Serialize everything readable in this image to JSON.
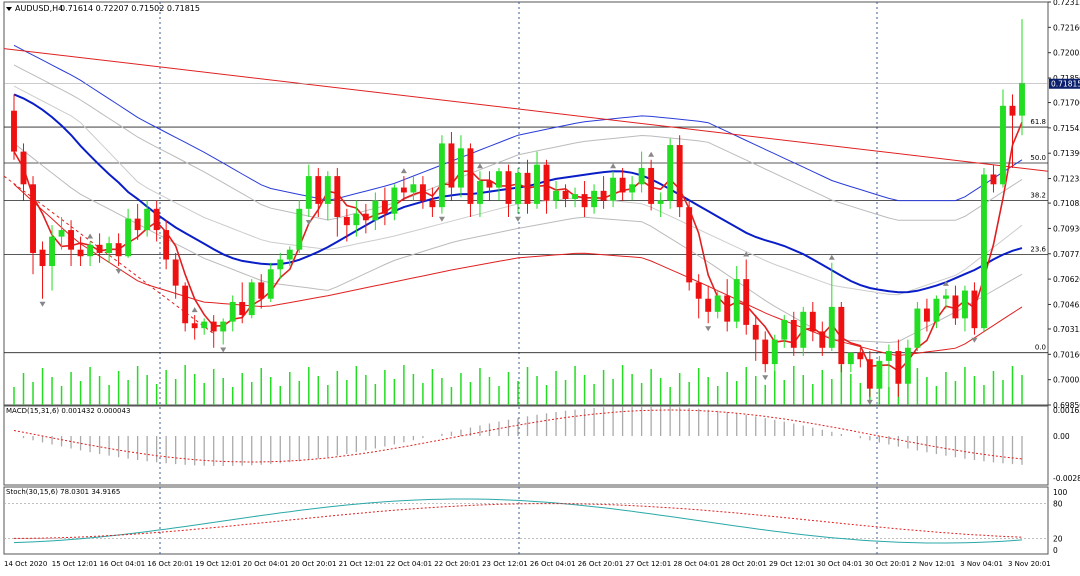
{
  "window": {
    "title": "AUDUSD,H4",
    "ohlc": "0.71614 0.72207 0.71502 0.71815"
  },
  "macd_panel": {
    "label": "MACD(15,31,6) 0.001432 0.000043",
    "ticks": [
      "0.001637",
      "0.00",
      "-0.002871"
    ]
  },
  "stoch_panel": {
    "label": "Stoch(30,15,6) 78.0301 34.9165",
    "ticks": [
      "100",
      "80",
      "20",
      "0"
    ]
  },
  "fib_labels": [
    "61.8",
    "50.0",
    "38.2",
    "23.6",
    "0.0"
  ],
  "colors": {
    "bull": "#22dd22",
    "bear": "#ee1111",
    "blue_ma": "#0a1ec8",
    "red_ma": "#e02020",
    "envelope": "#2a3cd8",
    "signal": "#e02020",
    "stoch_main": "#2aa8a8",
    "grid": "#3a5a9a"
  },
  "chart_data": {
    "type": "candlestick",
    "symbol": "AUDUSD,H4",
    "y_ticks": [
      "0.72315",
      "0.72160",
      "0.72005",
      "0.71850",
      "0.71700",
      "0.71545",
      "0.71390",
      "0.71235",
      "0.71085",
      "0.70930",
      "0.70775",
      "0.70620",
      "0.70465",
      "0.70315",
      "0.70160",
      "0.70005",
      "0.69850"
    ],
    "current_price": "0.71815",
    "ylim": [
      0.6985,
      0.72315
    ],
    "x_ticks": [
      "14 Oct 2020",
      "15 Oct 12:01",
      "16 Oct 04:01",
      "16 Oct 20:01",
      "19 Oct 12:01",
      "20 Oct 04:01",
      "20 Oct 20:01",
      "21 Oct 12:01",
      "22 Oct 04:01",
      "22 Oct 20:01",
      "23 Oct 12:01",
      "26 Oct 04:01",
      "26 Oct 20:01",
      "27 Oct 12:01",
      "28 Oct 04:01",
      "28 Oct 20:01",
      "29 Oct 12:01",
      "30 Oct 04:01",
      "30 Oct 20:01",
      "2 Nov 12:01",
      "3 Nov 04:01",
      "3 Nov 20:01"
    ],
    "fib_levels": [
      {
        "label": "61.8",
        "price": 0.7155
      },
      {
        "label": "50.0",
        "price": 0.7133
      },
      {
        "label": "38.2",
        "price": 0.711
      },
      {
        "label": "23.6",
        "price": 0.7077
      },
      {
        "label": "0.0",
        "price": 0.7017
      }
    ],
    "candles": [
      {
        "o": 0.7165,
        "h": 0.7175,
        "c": 0.714,
        "l": 0.7135
      },
      {
        "o": 0.714,
        "h": 0.7145,
        "c": 0.712,
        "l": 0.711
      },
      {
        "o": 0.712,
        "h": 0.7125,
        "c": 0.7078,
        "l": 0.7065
      },
      {
        "o": 0.708,
        "h": 0.7085,
        "c": 0.707,
        "l": 0.705
      },
      {
        "o": 0.707,
        "h": 0.7095,
        "c": 0.7088,
        "l": 0.7055
      },
      {
        "o": 0.7088,
        "h": 0.71,
        "c": 0.7092,
        "l": 0.708
      },
      {
        "o": 0.7092,
        "h": 0.7098,
        "c": 0.708,
        "l": 0.707
      },
      {
        "o": 0.708,
        "h": 0.7088,
        "c": 0.7076,
        "l": 0.707
      },
      {
        "o": 0.7076,
        "h": 0.7085,
        "c": 0.7083,
        "l": 0.707
      },
      {
        "o": 0.7083,
        "h": 0.709,
        "c": 0.7078,
        "l": 0.7072
      },
      {
        "o": 0.7078,
        "h": 0.7088,
        "c": 0.7084,
        "l": 0.7072
      },
      {
        "o": 0.7084,
        "h": 0.709,
        "c": 0.7076,
        "l": 0.707
      },
      {
        "o": 0.7076,
        "h": 0.7105,
        "c": 0.7099,
        "l": 0.7075
      },
      {
        "o": 0.7099,
        "h": 0.7108,
        "c": 0.7092,
        "l": 0.7086
      },
      {
        "o": 0.7092,
        "h": 0.711,
        "c": 0.7105,
        "l": 0.7088
      },
      {
        "o": 0.7105,
        "h": 0.711,
        "c": 0.7092,
        "l": 0.7085
      },
      {
        "o": 0.7092,
        "h": 0.7098,
        "c": 0.7074,
        "l": 0.7068
      },
      {
        "o": 0.7074,
        "h": 0.7078,
        "c": 0.7058,
        "l": 0.705
      },
      {
        "o": 0.7058,
        "h": 0.706,
        "c": 0.7035,
        "l": 0.703
      },
      {
        "o": 0.7035,
        "h": 0.704,
        "c": 0.7032,
        "l": 0.7025
      },
      {
        "o": 0.7032,
        "h": 0.7038,
        "c": 0.7036,
        "l": 0.7028
      },
      {
        "o": 0.7036,
        "h": 0.704,
        "c": 0.703,
        "l": 0.702
      },
      {
        "o": 0.703,
        "h": 0.7038,
        "c": 0.7036,
        "l": 0.7022
      },
      {
        "o": 0.7036,
        "h": 0.7052,
        "c": 0.7048,
        "l": 0.703
      },
      {
        "o": 0.7048,
        "h": 0.706,
        "c": 0.704,
        "l": 0.7035
      },
      {
        "o": 0.704,
        "h": 0.7062,
        "c": 0.706,
        "l": 0.7038
      },
      {
        "o": 0.706,
        "h": 0.7065,
        "c": 0.705,
        "l": 0.7044
      },
      {
        "o": 0.705,
        "h": 0.7072,
        "c": 0.7068,
        "l": 0.7048
      },
      {
        "o": 0.7068,
        "h": 0.7078,
        "c": 0.7074,
        "l": 0.7062
      },
      {
        "o": 0.7074,
        "h": 0.7082,
        "c": 0.708,
        "l": 0.707
      },
      {
        "o": 0.708,
        "h": 0.711,
        "c": 0.7105,
        "l": 0.7078
      },
      {
        "o": 0.7105,
        "h": 0.7132,
        "c": 0.7125,
        "l": 0.71
      },
      {
        "o": 0.7125,
        "h": 0.713,
        "c": 0.7108,
        "l": 0.71
      },
      {
        "o": 0.7108,
        "h": 0.7128,
        "c": 0.7125,
        "l": 0.7098
      },
      {
        "o": 0.7125,
        "h": 0.713,
        "c": 0.71,
        "l": 0.7088
      },
      {
        "o": 0.71,
        "h": 0.7105,
        "c": 0.7095,
        "l": 0.7085
      },
      {
        "o": 0.7095,
        "h": 0.711,
        "c": 0.7102,
        "l": 0.7088
      },
      {
        "o": 0.7102,
        "h": 0.7108,
        "c": 0.7098,
        "l": 0.709
      },
      {
        "o": 0.7098,
        "h": 0.7115,
        "c": 0.711,
        "l": 0.7092
      },
      {
        "o": 0.711,
        "h": 0.7118,
        "c": 0.7102,
        "l": 0.7095
      },
      {
        "o": 0.7102,
        "h": 0.712,
        "c": 0.7118,
        "l": 0.7098
      },
      {
        "o": 0.7118,
        "h": 0.7125,
        "c": 0.7115,
        "l": 0.711
      },
      {
        "o": 0.7115,
        "h": 0.7125,
        "c": 0.712,
        "l": 0.711
      },
      {
        "o": 0.712,
        "h": 0.7125,
        "c": 0.711,
        "l": 0.7105
      },
      {
        "o": 0.711,
        "h": 0.7118,
        "c": 0.7106,
        "l": 0.71
      },
      {
        "o": 0.7106,
        "h": 0.715,
        "c": 0.7145,
        "l": 0.7102
      },
      {
        "o": 0.7145,
        "h": 0.7152,
        "c": 0.7118,
        "l": 0.711
      },
      {
        "o": 0.7118,
        "h": 0.715,
        "c": 0.7142,
        "l": 0.7112
      },
      {
        "o": 0.7142,
        "h": 0.7145,
        "c": 0.7108,
        "l": 0.71
      },
      {
        "o": 0.7108,
        "h": 0.7128,
        "c": 0.7122,
        "l": 0.71
      },
      {
        "o": 0.7122,
        "h": 0.7128,
        "c": 0.7118,
        "l": 0.711
      },
      {
        "o": 0.7118,
        "h": 0.713,
        "c": 0.7128,
        "l": 0.711
      },
      {
        "o": 0.7128,
        "h": 0.7132,
        "c": 0.7108,
        "l": 0.71
      },
      {
        "o": 0.7108,
        "h": 0.713,
        "c": 0.7127,
        "l": 0.7102
      },
      {
        "o": 0.7127,
        "h": 0.7135,
        "c": 0.7108,
        "l": 0.7102
      },
      {
        "o": 0.7108,
        "h": 0.714,
        "c": 0.7132,
        "l": 0.7105
      },
      {
        "o": 0.7132,
        "h": 0.7135,
        "c": 0.711,
        "l": 0.7102
      },
      {
        "o": 0.711,
        "h": 0.7122,
        "c": 0.7116,
        "l": 0.7105
      },
      {
        "o": 0.7116,
        "h": 0.712,
        "c": 0.7111,
        "l": 0.7106
      },
      {
        "o": 0.7111,
        "h": 0.7118,
        "c": 0.7114,
        "l": 0.7106
      },
      {
        "o": 0.7114,
        "h": 0.7122,
        "c": 0.7106,
        "l": 0.71
      },
      {
        "o": 0.7106,
        "h": 0.712,
        "c": 0.7116,
        "l": 0.7102
      },
      {
        "o": 0.7116,
        "h": 0.7125,
        "c": 0.711,
        "l": 0.7105
      },
      {
        "o": 0.711,
        "h": 0.7128,
        "c": 0.7124,
        "l": 0.7106
      },
      {
        "o": 0.7124,
        "h": 0.713,
        "c": 0.7115,
        "l": 0.711
      },
      {
        "o": 0.7115,
        "h": 0.7125,
        "c": 0.712,
        "l": 0.711
      },
      {
        "o": 0.712,
        "h": 0.714,
        "c": 0.713,
        "l": 0.7115
      },
      {
        "o": 0.713,
        "h": 0.7135,
        "c": 0.7108,
        "l": 0.7104
      },
      {
        "o": 0.7108,
        "h": 0.7115,
        "c": 0.711,
        "l": 0.71
      },
      {
        "o": 0.711,
        "h": 0.7148,
        "c": 0.7144,
        "l": 0.7105
      },
      {
        "o": 0.7144,
        "h": 0.715,
        "c": 0.7106,
        "l": 0.71
      },
      {
        "o": 0.7106,
        "h": 0.711,
        "c": 0.706,
        "l": 0.7055
      },
      {
        "o": 0.706,
        "h": 0.7065,
        "c": 0.705,
        "l": 0.7038
      },
      {
        "o": 0.705,
        "h": 0.7058,
        "c": 0.7042,
        "l": 0.7035
      },
      {
        "o": 0.7042,
        "h": 0.7055,
        "c": 0.7052,
        "l": 0.7038
      },
      {
        "o": 0.7052,
        "h": 0.7062,
        "c": 0.7036,
        "l": 0.703
      },
      {
        "o": 0.7036,
        "h": 0.707,
        "c": 0.7062,
        "l": 0.7032
      },
      {
        "o": 0.7062,
        "h": 0.7074,
        "c": 0.7034,
        "l": 0.7028
      },
      {
        "o": 0.7034,
        "h": 0.704,
        "c": 0.7025,
        "l": 0.7012
      },
      {
        "o": 0.7025,
        "h": 0.703,
        "c": 0.701,
        "l": 0.7005
      },
      {
        "o": 0.701,
        "h": 0.7028,
        "c": 0.7025,
        "l": 0.7005
      },
      {
        "o": 0.7025,
        "h": 0.704,
        "c": 0.7037,
        "l": 0.702
      },
      {
        "o": 0.7037,
        "h": 0.7042,
        "c": 0.702,
        "l": 0.7015
      },
      {
        "o": 0.702,
        "h": 0.7045,
        "c": 0.7042,
        "l": 0.7015
      },
      {
        "o": 0.7042,
        "h": 0.7048,
        "c": 0.703,
        "l": 0.7024
      },
      {
        "o": 0.703,
        "h": 0.7036,
        "c": 0.702,
        "l": 0.7015
      },
      {
        "o": 0.702,
        "h": 0.7072,
        "c": 0.7045,
        "l": 0.7018
      },
      {
        "o": 0.7045,
        "h": 0.7048,
        "c": 0.701,
        "l": 0.7005
      },
      {
        "o": 0.701,
        "h": 0.7015,
        "c": 0.7017,
        "l": 0.7005
      },
      {
        "o": 0.7017,
        "h": 0.702,
        "c": 0.7013,
        "l": 0.7008
      },
      {
        "o": 0.7013,
        "h": 0.7018,
        "c": 0.6995,
        "l": 0.699
      },
      {
        "o": 0.6995,
        "h": 0.7015,
        "c": 0.7012,
        "l": 0.6992
      },
      {
        "o": 0.7012,
        "h": 0.7022,
        "c": 0.7018,
        "l": 0.6995
      },
      {
        "o": 0.7018,
        "h": 0.7025,
        "c": 0.6998,
        "l": 0.699
      },
      {
        "o": 0.6998,
        "h": 0.7025,
        "c": 0.702,
        "l": 0.6992
      },
      {
        "o": 0.702,
        "h": 0.7048,
        "c": 0.7044,
        "l": 0.7018
      },
      {
        "o": 0.7044,
        "h": 0.705,
        "c": 0.7036,
        "l": 0.703
      },
      {
        "o": 0.7036,
        "h": 0.7052,
        "c": 0.705,
        "l": 0.7032
      },
      {
        "o": 0.705,
        "h": 0.7056,
        "c": 0.7052,
        "l": 0.7044
      },
      {
        "o": 0.7052,
        "h": 0.7058,
        "c": 0.7038,
        "l": 0.7034
      },
      {
        "o": 0.7038,
        "h": 0.7058,
        "c": 0.7055,
        "l": 0.703
      },
      {
        "o": 0.7055,
        "h": 0.706,
        "c": 0.7032,
        "l": 0.7028
      },
      {
        "o": 0.7032,
        "h": 0.713,
        "c": 0.7126,
        "l": 0.703
      },
      {
        "o": 0.7126,
        "h": 0.7132,
        "c": 0.712,
        "l": 0.7115
      },
      {
        "o": 0.712,
        "h": 0.7178,
        "c": 0.7168,
        "l": 0.7118
      },
      {
        "o": 0.7168,
        "h": 0.7175,
        "c": 0.7162,
        "l": 0.713
      },
      {
        "o": 0.7162,
        "h": 0.7221,
        "c": 0.7182,
        "l": 0.715
      }
    ],
    "blue_ma": [
      0.7175,
      0.7172,
      0.7168,
      0.7163,
      0.7157,
      0.715,
      0.7142,
      0.7135,
      0.7128,
      0.7122,
      0.7115,
      0.711,
      0.7104,
      0.7099,
      0.7094,
      0.709,
      0.7086,
      0.7082,
      0.7078,
      0.7075,
      0.7073,
      0.7072,
      0.7071,
      0.7071,
      0.7072,
      0.7074,
      0.7077,
      0.708,
      0.7084,
      0.7088,
      0.7092,
      0.7096,
      0.71,
      0.7103,
      0.7106,
      0.7108,
      0.711,
      0.7112,
      0.7113,
      0.7114,
      0.7114,
      0.7115,
      0.7116,
      0.7117,
      0.7118,
      0.7119,
      0.7121,
      0.7123,
      0.7124,
      0.7125,
      0.7126,
      0.7127,
      0.7128,
      0.7128,
      0.7127,
      0.7125,
      0.7122,
      0.7118,
      0.7114,
      0.711,
      0.7106,
      0.7102,
      0.7098,
      0.7094,
      0.709,
      0.7087,
      0.7085,
      0.7083,
      0.708,
      0.7077,
      0.7073,
      0.7069,
      0.7065,
      0.7061,
      0.7058,
      0.7056,
      0.7055,
      0.7054,
      0.7054,
      0.7055,
      0.7057,
      0.7059,
      0.7062,
      0.7065,
      0.7068,
      0.7072,
      0.7076,
      0.7079,
      0.7081
    ]
  }
}
